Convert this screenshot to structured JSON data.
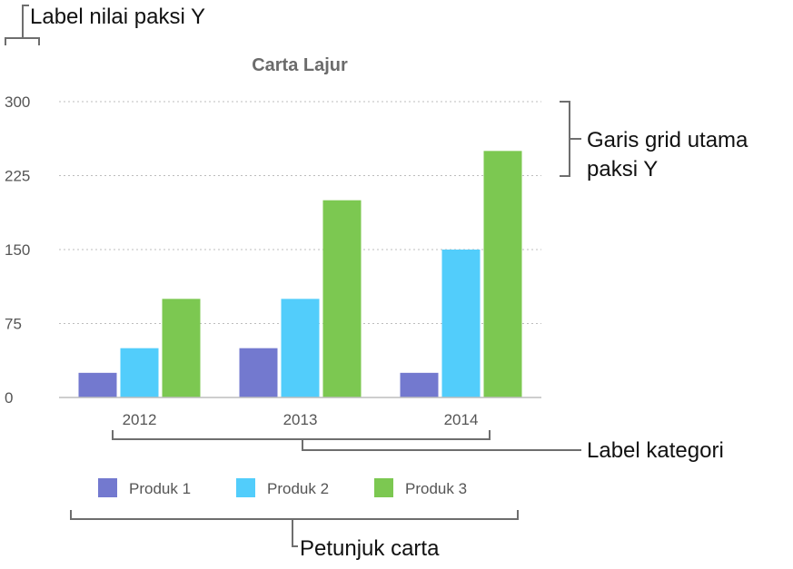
{
  "chart_data": {
    "type": "bar",
    "title": "Carta Lajur",
    "categories": [
      "2012",
      "2013",
      "2014"
    ],
    "series": [
      {
        "name": "Produk 1",
        "values": [
          25,
          50,
          25
        ],
        "color": "#7379cf"
      },
      {
        "name": "Produk 2",
        "values": [
          50,
          100,
          150
        ],
        "color": "#52cdfb"
      },
      {
        "name": "Produk 3",
        "values": [
          100,
          200,
          250
        ],
        "color": "#7cc851"
      }
    ],
    "y_ticks": [
      "0",
      "75",
      "150",
      "225",
      "300"
    ],
    "ylim": [
      0,
      300
    ],
    "xlabel": "",
    "ylabel": "",
    "grid": true,
    "legend_position": "bottom"
  },
  "annotations": {
    "y_value_label": "Label nilai paksi Y",
    "gridlines_line1": "Garis grid utama",
    "gridlines_line2": "paksi Y",
    "category_label": "Label kategori",
    "legend_label": "Petunjuk carta"
  }
}
